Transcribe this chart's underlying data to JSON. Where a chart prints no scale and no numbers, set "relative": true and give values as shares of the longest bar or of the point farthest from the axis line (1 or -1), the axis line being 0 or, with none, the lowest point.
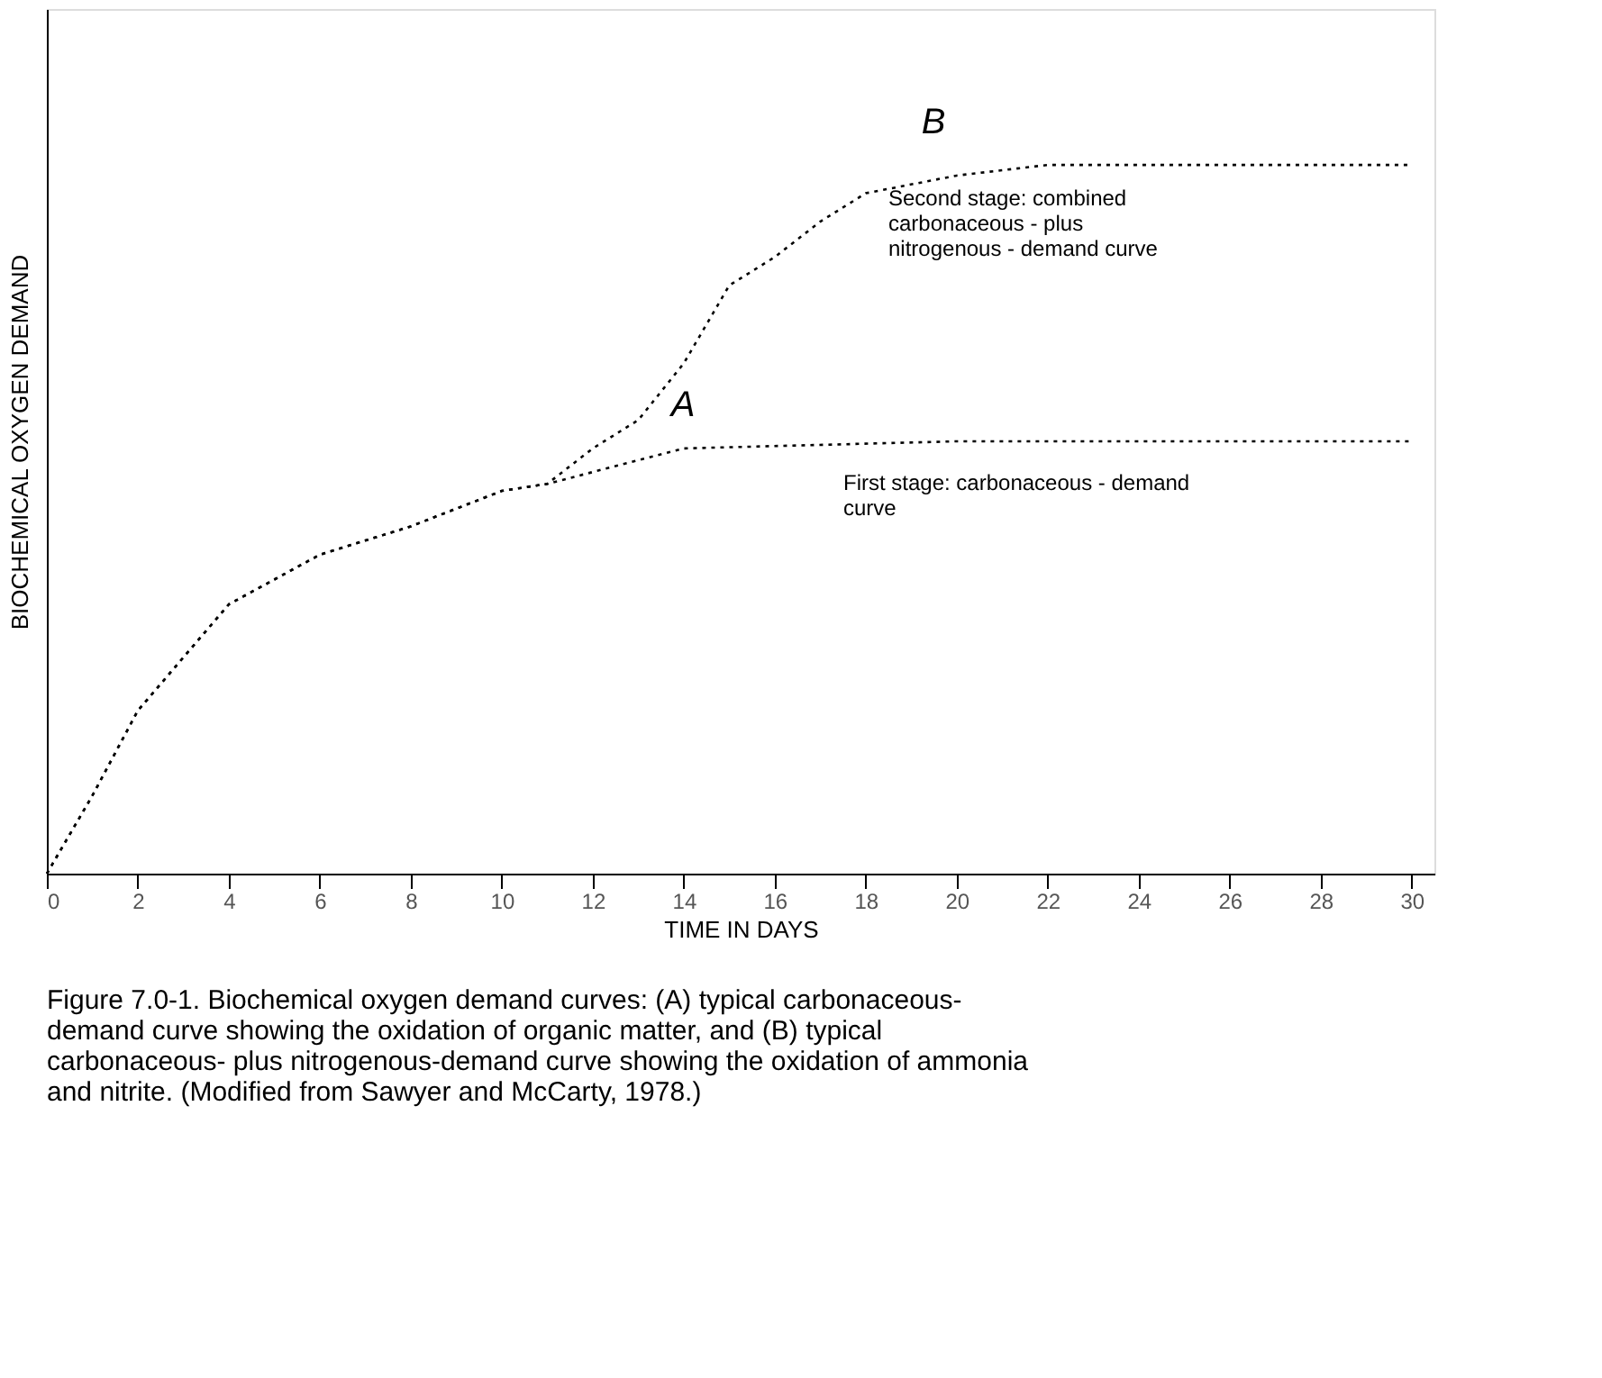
{
  "chart_data": {
    "type": "line",
    "relative": true,
    "xlabel": "TIME IN DAYS",
    "ylabel": "BIOCHEMICAL OXYGEN DEMAND",
    "xlim": [
      0,
      30.5
    ],
    "xticks": [
      0,
      2,
      4,
      6,
      8,
      10,
      12,
      14,
      16,
      18,
      20,
      22,
      24,
      26,
      28,
      30
    ],
    "series": [
      {
        "color": "#000000",
        "x": [
          0,
          1,
          2,
          4,
          6,
          8,
          10,
          11,
          14,
          20,
          30
        ],
        "values": [
          0,
          0.11,
          0.23,
          0.38,
          0.45,
          0.49,
          0.54,
          0.55,
          0.6,
          0.61,
          0.61
        ]
      },
      {
        "color": "#000000",
        "x": [
          0,
          1,
          2,
          4,
          6,
          8,
          10,
          11,
          12,
          13,
          14,
          15,
          16,
          17,
          18,
          20,
          22,
          30
        ],
        "values": [
          0,
          0.11,
          0.23,
          0.38,
          0.45,
          0.49,
          0.54,
          0.55,
          0.6,
          0.64,
          0.72,
          0.83,
          0.87,
          0.92,
          0.96,
          0.985,
          1,
          1
        ]
      }
    ],
    "line_style": "dotted",
    "grid": false,
    "annotations": [
      "A",
      "B",
      "Second stage: combined\ncarbonaceous - plus\nnitrogenous - demand curve",
      "First stage: carbonaceous - demand\ncurve",
      "Figure 7.0-1. Biochemical oxygen demand curves: (A) typical carbonaceous-\ndemand curve showing the oxidation of organic matter, and (B) typical\ncarbonaceous- plus nitrogenous-demand curve showing the oxidation of ammonia\nand nitrite. (Modified from Sawyer and McCarty, 1978.)"
    ]
  }
}
